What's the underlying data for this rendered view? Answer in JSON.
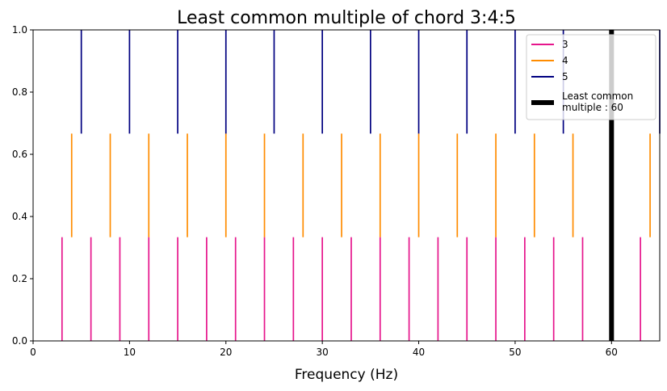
{
  "chart_data": {
    "type": "line",
    "title": "Least common multiple of chord 3:4:5",
    "xlabel": "Frequency (Hz)",
    "ylabel": "",
    "xlim": [
      0,
      65
    ],
    "ylim": [
      0,
      1
    ],
    "x_ticks": [
      0,
      10,
      20,
      30,
      40,
      50,
      60
    ],
    "y_ticks": [
      0.0,
      0.2,
      0.4,
      0.6,
      0.8,
      1.0
    ],
    "x_tick_labels": [
      "0",
      "10",
      "20",
      "30",
      "40",
      "50",
      "60"
    ],
    "y_tick_labels": [
      "0.0",
      "0.2",
      "0.4",
      "0.6",
      "0.8",
      "1.0"
    ],
    "grid": false,
    "legend_position": "top-right",
    "series": [
      {
        "name": "3",
        "color": "#e6158c",
        "ymin": 0.0,
        "ymax": 0.3333,
        "x": [
          3,
          6,
          9,
          12,
          15,
          18,
          21,
          24,
          27,
          30,
          33,
          36,
          39,
          42,
          45,
          48,
          51,
          54,
          57,
          63
        ]
      },
      {
        "name": "4",
        "color": "#ff8c00",
        "ymin": 0.3333,
        "ymax": 0.6667,
        "x": [
          4,
          8,
          12,
          16,
          20,
          24,
          28,
          32,
          36,
          40,
          44,
          48,
          52,
          56,
          64
        ]
      },
      {
        "name": "5",
        "color": "#000080",
        "ymin": 0.6667,
        "ymax": 1.0,
        "x": [
          5,
          10,
          15,
          20,
          25,
          30,
          35,
          40,
          45,
          50,
          55,
          65
        ]
      }
    ],
    "lcm": {
      "name": "Least common multiple : 60",
      "name_lines": [
        "Least common",
        "multiple : 60"
      ],
      "x": 60,
      "color": "#000000"
    }
  }
}
